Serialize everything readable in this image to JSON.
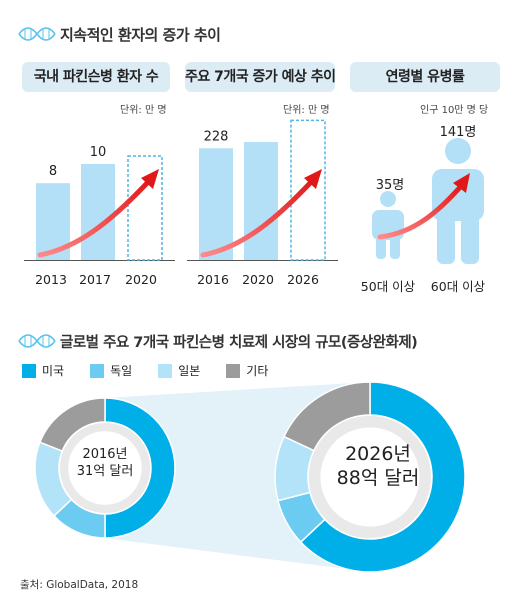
{
  "section1": {
    "title": "지속적인 환자의 증가 추이"
  },
  "section2": {
    "title": "글로벌 주요 7개국 파킨슨병 치료제 시장의 규모(증상완화제)"
  },
  "source": "출처: GlobalData, 2018",
  "colors": {
    "bar": "#b3e0f6",
    "dna": "#57c3ef",
    "header_bg": "#dcecf5",
    "arrow": "#e02020",
    "us": "#00aee8",
    "germany": "#6ccbf0",
    "japan": "#b3e3f8",
    "other": "#9c9c9c"
  },
  "chart_data": [
    {
      "type": "bar",
      "title": "국내 파킨슨병 환자 수",
      "unit": "단위: 만 명",
      "categories": [
        "2013",
        "2017",
        "2020"
      ],
      "values": [
        8,
        10,
        null
      ],
      "projected": [
        false,
        false,
        true
      ]
    },
    {
      "type": "bar",
      "title": "주요 7개국 증가 예상 추이",
      "unit": "단위: 만 명",
      "categories": [
        "2016",
        "2020",
        "2026"
      ],
      "values": [
        228,
        null,
        285
      ],
      "projected": [
        false,
        false,
        true
      ]
    },
    {
      "type": "bar",
      "title": "연령별 유병률",
      "unit": "인구 10만 명 당",
      "categories": [
        "50대 이상",
        "60대 이상"
      ],
      "values": [
        35,
        141
      ],
      "value_labels": [
        "35명",
        "141명"
      ]
    },
    {
      "type": "pie",
      "year_label": "2016년",
      "total_label": "31억 달러",
      "series": [
        {
          "name": "미국",
          "value": 50
        },
        {
          "name": "독일",
          "value": 13
        },
        {
          "name": "일본",
          "value": 18
        },
        {
          "name": "기타",
          "value": 19
        }
      ]
    },
    {
      "type": "pie",
      "year_label": "2026년",
      "total_label": "88억 달러",
      "series": [
        {
          "name": "미국",
          "value": 63
        },
        {
          "name": "독일",
          "value": 8
        },
        {
          "name": "일본",
          "value": 11
        },
        {
          "name": "기타",
          "value": 18
        }
      ]
    }
  ]
}
